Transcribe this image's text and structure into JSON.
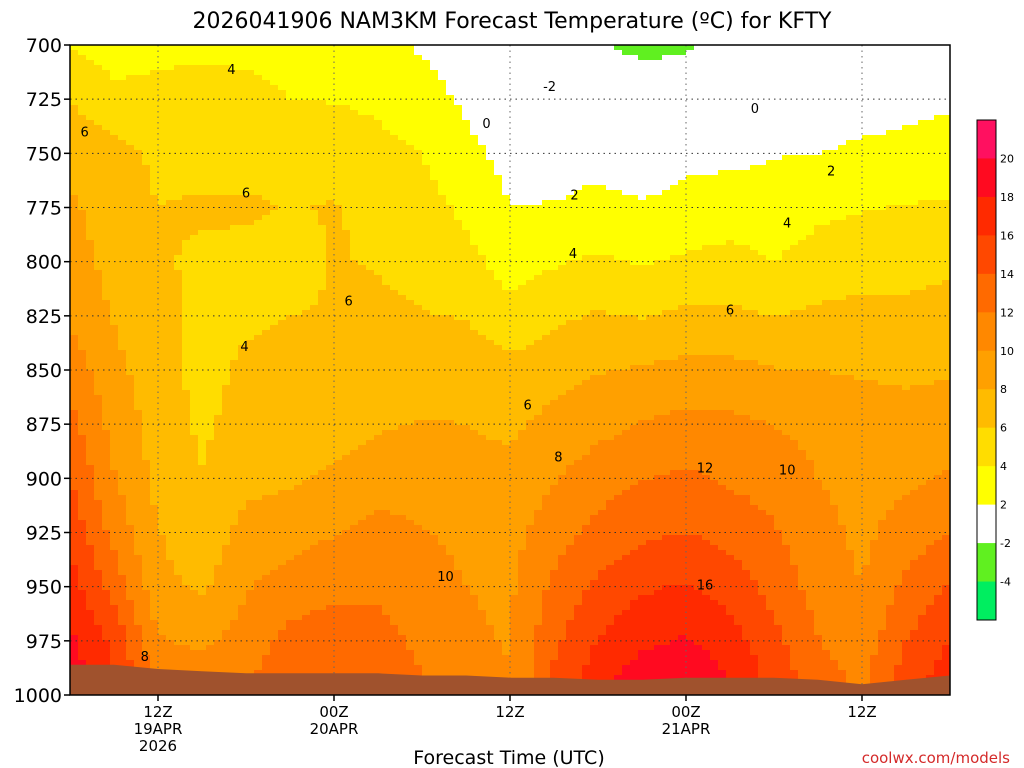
{
  "chart_data": {
    "type": "time-height contour (filled)",
    "title": "2026041906 NAM3KM Forecast Temperature (ºC) for KFTY",
    "xlabel": "Forecast Time (UTC)",
    "ylabel": "",
    "credit": "coolwx.com/models",
    "y_axis": {
      "units": "hPa",
      "range": [
        1000,
        700
      ],
      "ticks": [
        700,
        725,
        750,
        775,
        800,
        825,
        850,
        875,
        900,
        925,
        950,
        975,
        1000
      ]
    },
    "x_axis": {
      "range_hours": [
        0,
        60
      ],
      "ticks": [
        {
          "hour": 6,
          "label1": "12Z",
          "label2": "19APR",
          "label3": "2026"
        },
        {
          "hour": 18,
          "label1": "00Z",
          "label2": "20APR",
          "label3": ""
        },
        {
          "hour": 30,
          "label1": "12Z",
          "label2": "",
          "label3": ""
        },
        {
          "hour": 42,
          "label1": "00Z",
          "label2": "21APR",
          "label3": ""
        },
        {
          "hour": 54,
          "label1": "12Z",
          "label2": "",
          "label3": ""
        }
      ]
    },
    "colorbar": [
      {
        "min": -6,
        "max": -4,
        "color": "#00ee60"
      },
      {
        "min": -4,
        "max": -2,
        "color": "#60f020"
      },
      {
        "min": -2,
        "max": 2,
        "color": "#ffffff"
      },
      {
        "min": 2,
        "max": 4,
        "color": "#ffff00"
      },
      {
        "min": 4,
        "max": 6,
        "color": "#ffdd00"
      },
      {
        "min": 6,
        "max": 8,
        "color": "#ffbb00"
      },
      {
        "min": 8,
        "max": 10,
        "color": "#ffa000"
      },
      {
        "min": 10,
        "max": 12,
        "color": "#ff8800"
      },
      {
        "min": 12,
        "max": 14,
        "color": "#ff6a00"
      },
      {
        "min": 14,
        "max": 16,
        "color": "#ff4800"
      },
      {
        "min": 16,
        "max": 18,
        "color": "#ff2a00"
      },
      {
        "min": 18,
        "max": 20,
        "color": "#ff0a20"
      },
      {
        "min": 20,
        "max": 24,
        "color": "#ff1060"
      }
    ],
    "colorbar_labels": [
      "-4",
      "-2",
      "2",
      "4",
      "6",
      "8",
      "10",
      "12",
      "14",
      "16",
      "18",
      "20"
    ],
    "contour_labels": [
      {
        "text": "4",
        "h": 11.0,
        "p": 711
      },
      {
        "text": "6",
        "h": 1.0,
        "p": 740
      },
      {
        "text": "6",
        "h": 12.0,
        "p": 768
      },
      {
        "text": "4",
        "h": 11.9,
        "p": 839
      },
      {
        "text": "6",
        "h": 19.0,
        "p": 818
      },
      {
        "text": "0",
        "h": 28.4,
        "p": 736
      },
      {
        "text": "-2",
        "h": 32.7,
        "p": 719
      },
      {
        "text": "0",
        "h": 46.7,
        "p": 729
      },
      {
        "text": "2",
        "h": 34.4,
        "p": 769
      },
      {
        "text": "4",
        "h": 34.3,
        "p": 796
      },
      {
        "text": "6",
        "h": 31.2,
        "p": 866
      },
      {
        "text": "8",
        "h": 33.3,
        "p": 890
      },
      {
        "text": "10",
        "h": 25.6,
        "p": 945
      },
      {
        "text": "12",
        "h": 43.3,
        "p": 895
      },
      {
        "text": "10",
        "h": 48.9,
        "p": 896
      },
      {
        "text": "6",
        "h": 45.0,
        "p": 822
      },
      {
        "text": "4",
        "h": 48.9,
        "p": 782
      },
      {
        "text": "2",
        "h": 51.9,
        "p": 758
      },
      {
        "text": "16",
        "h": 43.3,
        "p": 949
      },
      {
        "text": "8",
        "h": 5.1,
        "p": 982
      }
    ],
    "field_description": "Interpolated forecast temperature field; reconstruction uses control profiles in hPa/°C",
    "profiles": {
      "pressures": [
        700,
        725,
        750,
        775,
        800,
        825,
        850,
        875,
        900,
        925,
        950,
        975,
        1000
      ],
      "times": [
        0,
        3,
        6,
        9,
        12,
        15,
        18,
        21,
        24,
        27,
        30,
        33,
        36,
        39,
        42,
        45,
        48,
        51,
        54,
        57,
        60
      ],
      "temps": [
        [
          3.8,
          5.9,
          7.5,
          8.3,
          8.9,
          9.6,
          11.3,
          12.7,
          14.0,
          15.5,
          17.0,
          18.5,
          19.5
        ],
        [
          3.2,
          4.4,
          6.7,
          7.1,
          7.3,
          7.9,
          8.5,
          9.3,
          10.1,
          11.3,
          13.2,
          15.5,
          16.5
        ],
        [
          3.6,
          4.5,
          5.6,
          6.0,
          6.3,
          6.8,
          6.9,
          7.2,
          7.4,
          8.1,
          8.6,
          10.2,
          12.0
        ],
        [
          3.8,
          4.4,
          5.0,
          6.3,
          5.6,
          5.2,
          5.3,
          5.6,
          6.1,
          6.6,
          7.7,
          9.6,
          11.5
        ],
        [
          3.6,
          4.5,
          5.2,
          6.3,
          5.4,
          5.7,
          6.4,
          6.9,
          7.5,
          8.7,
          9.8,
          10.9,
          12.0
        ],
        [
          3.4,
          4.0,
          5.6,
          5.9,
          5.4,
          6.0,
          6.4,
          6.9,
          7.7,
          9.1,
          11.0,
          12.6,
          14.0
        ],
        [
          2.8,
          3.9,
          5.3,
          6.1,
          6.1,
          6.1,
          6.4,
          7.1,
          8.3,
          9.9,
          11.6,
          12.9,
          14.0
        ],
        [
          2.5,
          3.6,
          4.6,
          5.6,
          5.9,
          6.3,
          6.8,
          7.8,
          9.0,
          10.7,
          11.6,
          12.7,
          13.8
        ],
        [
          1.8,
          2.7,
          4.0,
          4.8,
          5.4,
          6.1,
          7.2,
          8.1,
          9.1,
          10.1,
          10.8,
          11.6,
          12.3
        ],
        [
          1.2,
          1.7,
          2.4,
          3.6,
          4.6,
          5.9,
          7.2,
          8.0,
          8.8,
          9.6,
          10.0,
          10.3,
          10.8
        ],
        [
          0.6,
          1.0,
          1.5,
          2.0,
          3.2,
          4.6,
          6.6,
          7.6,
          8.5,
          9.3,
          9.7,
          9.9,
          10.1
        ],
        [
          -0.9,
          0.3,
          1.2,
          2.1,
          3.8,
          5.6,
          7.2,
          8.6,
          9.9,
          11.1,
          12.4,
          13.6,
          14.6
        ],
        [
          -1.6,
          0.0,
          1.4,
          2.5,
          4.3,
          6.2,
          7.9,
          9.4,
          11.0,
          12.7,
          14.4,
          16.1,
          17.6
        ],
        [
          -2.7,
          -0.4,
          0.6,
          2.3,
          3.8,
          5.9,
          8.2,
          10.1,
          11.9,
          13.6,
          15.7,
          17.6,
          19.9
        ],
        [
          -2.3,
          -0.2,
          1.6,
          2.5,
          4.3,
          6.4,
          8.6,
          10.6,
          12.4,
          14.0,
          16.2,
          18.2,
          20.2
        ],
        [
          -1.5,
          0.3,
          1.7,
          2.6,
          4.8,
          6.3,
          8.6,
          10.5,
          11.7,
          13.3,
          15.1,
          16.9,
          18.5
        ],
        [
          -0.6,
          0.5,
          1.9,
          2.7,
          4.0,
          6.0,
          8.1,
          9.9,
          11.2,
          12.2,
          13.3,
          14.6,
          15.5
        ],
        [
          -0.3,
          0.6,
          2.0,
          3.5,
          4.9,
          6.3,
          8.0,
          9.5,
          10.0,
          10.6,
          11.2,
          12.1,
          13.2
        ],
        [
          0.3,
          1.1,
          2.4,
          3.9,
          5.1,
          6.6,
          7.8,
          8.9,
          9.4,
          9.6,
          10.0,
          10.8,
          11.8
        ],
        [
          0.8,
          1.5,
          2.5,
          4.1,
          5.3,
          6.5,
          7.6,
          8.8,
          9.6,
          10.8,
          12.5,
          14.0,
          15.4
        ],
        [
          0.6,
          1.8,
          2.6,
          4.3,
          5.7,
          6.7,
          7.8,
          9.1,
          10.2,
          12.1,
          14.2,
          16.0,
          17.6
        ]
      ]
    },
    "terrain_surface_hPa": [
      986,
      986,
      988,
      989,
      990,
      990,
      990,
      990,
      991,
      991,
      992,
      992,
      993,
      993,
      992,
      992,
      992,
      993,
      995,
      993,
      991
    ]
  }
}
